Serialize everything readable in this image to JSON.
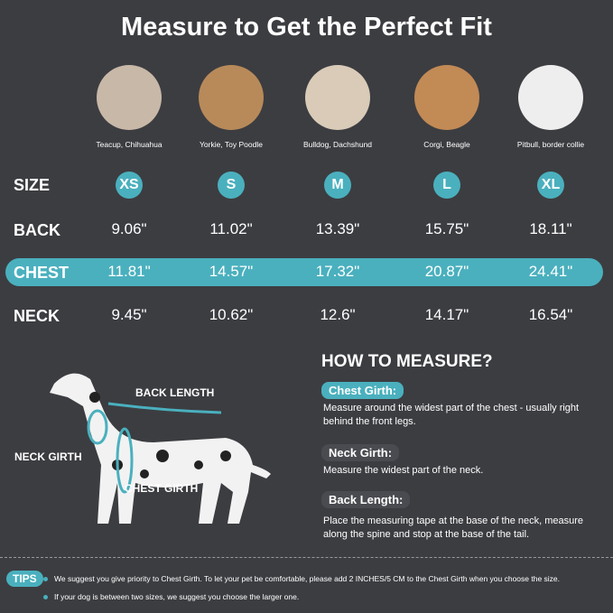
{
  "title": "Measure to Get the Perfect Fit",
  "breeds": [
    "Teacup, Chihuahua",
    "Yorkie, Toy Poodle",
    "Bulldog, Dachshund",
    "Corgi, Beagle",
    "Pitbull, border collie"
  ],
  "table": {
    "sizes_label": "SIZE",
    "sizes": [
      "XS",
      "S",
      "M",
      "L",
      "XL"
    ],
    "rows": [
      {
        "label": "BACK",
        "values": [
          "9.06\"",
          "11.02\"",
          "13.39\"",
          "15.75\"",
          "18.11\""
        ]
      },
      {
        "label": "CHEST",
        "values": [
          "11.81\"",
          "14.57\"",
          "17.32\"",
          "20.87\"",
          "24.41\""
        ]
      },
      {
        "label": "NECK",
        "values": [
          "9.45\"",
          "10.62\"",
          "12.6\"",
          "14.17\"",
          "16.54\""
        ]
      }
    ]
  },
  "diagram": {
    "back": "BACK LENGTH",
    "neck": "NECK GIRTH",
    "chest": "CHEST GIRTH"
  },
  "how": {
    "title": "HOW TO MEASURE?",
    "items": [
      {
        "label": "Chest Girth:",
        "text": "Measure around the widest part of the chest - usually right behind the front legs."
      },
      {
        "label": "Neck Girth:",
        "text": "Measure the widest part of the neck."
      },
      {
        "label": "Back Length:",
        "text": "Place the measuring tape at the base of the neck, measure along the spine and stop at the base of the tail."
      }
    ]
  },
  "tips": {
    "label": "TIPS",
    "items": [
      "We suggest you give priority to Chest Girth. To let your pet be comfortable, please add 2 INCHES/5 CM to the Chest Girth when you choose the size.",
      "If your dog is between two sizes, we suggest you choose the larger one."
    ]
  },
  "colors": {
    "accent": "#4ab0be",
    "background": "#3c3d41"
  }
}
